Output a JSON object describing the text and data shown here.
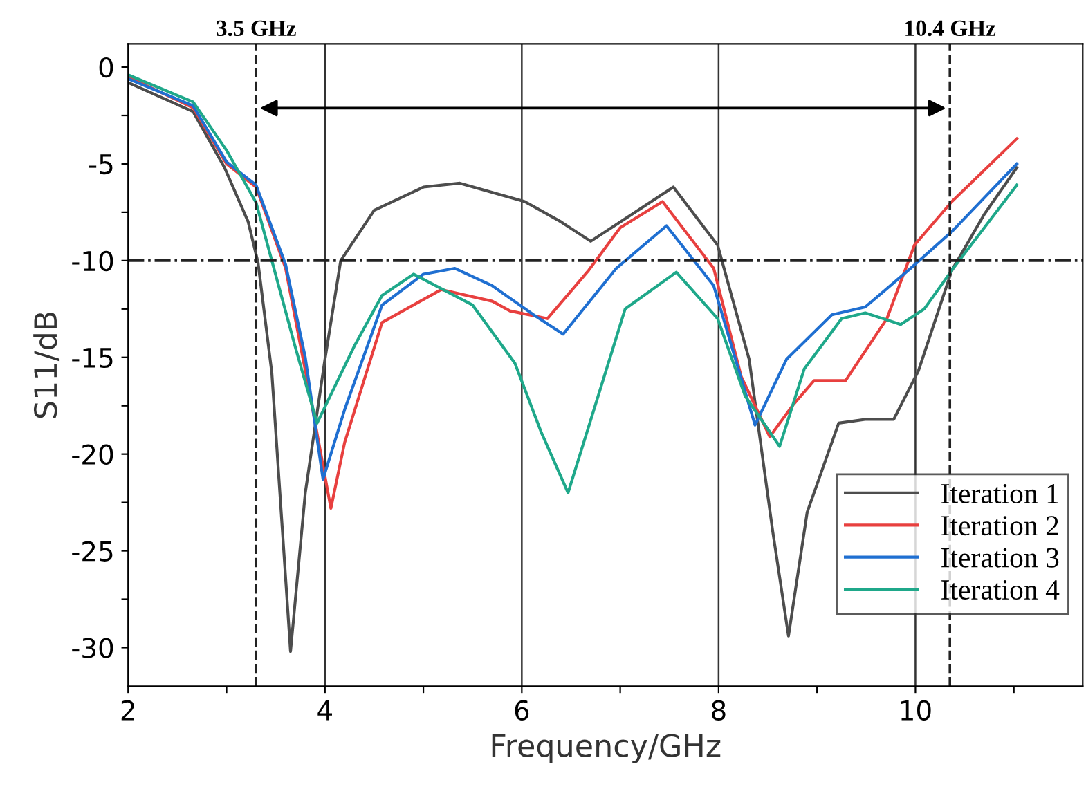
{
  "chart_data": {
    "type": "line",
    "xlabel": "Frequency/GHz",
    "ylabel": "S11/dB",
    "xlim": [
      2,
      11.7
    ],
    "ylim": [
      -32,
      1.2
    ],
    "xticks": [
      2,
      {
        "value": 3,
        "label": null
      },
      4,
      {
        "value": 5,
        "label": null
      },
      6,
      {
        "value": 7,
        "label": null
      },
      8,
      {
        "value": 9,
        "label": null
      },
      10,
      {
        "value": 11,
        "label": null
      }
    ],
    "yticks": [
      {
        "value": -30,
        "label": "-30"
      },
      {
        "value": -27.5,
        "label": null
      },
      {
        "value": -25,
        "label": "-25"
      },
      {
        "value": -22.5,
        "label": null
      },
      {
        "value": -20,
        "label": "-20"
      },
      {
        "value": -17.5,
        "label": null
      },
      {
        "value": -15,
        "label": "-15"
      },
      {
        "value": -12.5,
        "label": null
      },
      {
        "value": -10,
        "label": "-10"
      },
      {
        "value": -7.5,
        "label": null
      },
      {
        "value": -5,
        "label": "-5"
      },
      {
        "value": -2.5,
        "label": null
      },
      0
    ],
    "grid": "x",
    "legend": "bottom right",
    "marker": "none",
    "line_style": "solid",
    "ref_lines": [
      {
        "axis": "x",
        "value": 3.3,
        "label": "3.5 GHz",
        "line_style": "dashed",
        "color": "#222222"
      },
      {
        "axis": "x",
        "value": 10.35,
        "label": "10.4 GHz",
        "line_style": "dashed",
        "color": "#222222"
      },
      {
        "axis": "y",
        "value": -10,
        "line_style": "dashdot",
        "color": "#222222"
      }
    ],
    "series": [
      {
        "name": "Iteration 1",
        "color": "#4d4d4d",
        "x": [
          2,
          2.66,
          2.98,
          3.22,
          3.32,
          3.46,
          3.65,
          3.8,
          4.0,
          4.16,
          4.5,
          5.0,
          5.37,
          6.03,
          6.4,
          6.7,
          7.0,
          7.54,
          7.99,
          8.31,
          8.55,
          8.71,
          8.9,
          9.22,
          9.5,
          9.78,
          10.03,
          10.37,
          10.7,
          11.03
        ],
        "values": [
          -0.8,
          -2.3,
          -5.2,
          -8.0,
          -10.1,
          -15.8,
          -30.2,
          -22.0,
          -15.1,
          -10.0,
          -7.4,
          -6.2,
          -6.0,
          -6.95,
          -8.0,
          -9.0,
          -8.0,
          -6.2,
          -9.2,
          -15.1,
          -24.0,
          -29.4,
          -23.0,
          -18.4,
          -18.2,
          -18.2,
          -15.7,
          -10.5,
          -7.6,
          -5.2
        ]
      },
      {
        "name": "Iteration 2",
        "color": "#e8403f",
        "x": [
          2,
          2.66,
          3.0,
          3.3,
          3.6,
          3.85,
          4.06,
          4.2,
          4.58,
          5.18,
          5.7,
          5.88,
          6.26,
          6.68,
          7.0,
          7.43,
          7.95,
          8.23,
          8.52,
          8.75,
          8.97,
          9.29,
          9.71,
          9.99,
          10.37,
          11.03
        ],
        "values": [
          -0.5,
          -2.1,
          -5.0,
          -6.2,
          -10.4,
          -17.0,
          -22.8,
          -19.4,
          -13.2,
          -11.5,
          -12.1,
          -12.6,
          -13.0,
          -10.5,
          -8.3,
          -6.95,
          -10.4,
          -16.0,
          -19.1,
          -17.5,
          -16.2,
          -16.2,
          -13.0,
          -9.2,
          -6.95,
          -3.7
        ]
      },
      {
        "name": "Iteration 3",
        "color": "#1f6fd1",
        "x": [
          2,
          2.66,
          3.0,
          3.3,
          3.6,
          3.8,
          3.98,
          4.2,
          4.58,
          5.0,
          5.32,
          5.7,
          6.12,
          6.42,
          6.96,
          7.47,
          7.95,
          8.37,
          8.69,
          9.15,
          9.49,
          9.95,
          10.37,
          11.03
        ],
        "values": [
          -0.6,
          -2.0,
          -4.9,
          -6.1,
          -10.2,
          -15.0,
          -21.3,
          -17.7,
          -12.3,
          -10.7,
          -10.4,
          -11.3,
          -12.8,
          -13.8,
          -10.4,
          -8.2,
          -11.3,
          -18.5,
          -15.1,
          -12.8,
          -12.4,
          -10.4,
          -8.5,
          -5.0
        ]
      },
      {
        "name": "Iteration 4",
        "color": "#1fa88a",
        "x": [
          2,
          2.66,
          3.0,
          3.3,
          3.46,
          3.7,
          3.92,
          4.3,
          4.58,
          4.9,
          5.5,
          5.93,
          6.2,
          6.47,
          6.66,
          7.05,
          7.57,
          7.99,
          8.27,
          8.62,
          8.87,
          9.25,
          9.49,
          9.85,
          10.09,
          10.37,
          11.03
        ],
        "values": [
          -0.4,
          -1.8,
          -4.3,
          -7.0,
          -10.0,
          -14.5,
          -18.4,
          -14.4,
          -11.8,
          -10.7,
          -12.3,
          -15.3,
          -18.9,
          -22.0,
          -18.9,
          -12.5,
          -10.6,
          -13.0,
          -17.0,
          -19.6,
          -15.6,
          -13.0,
          -12.7,
          -13.3,
          -12.5,
          -10.5,
          -6.1
        ]
      }
    ]
  }
}
